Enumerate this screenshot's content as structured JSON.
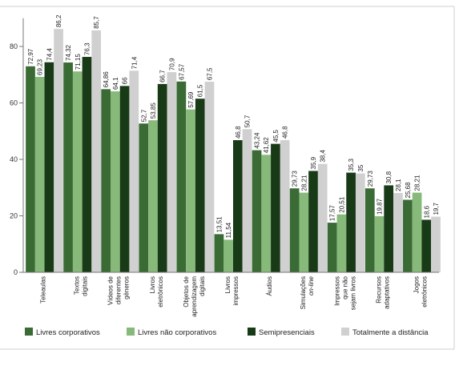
{
  "chart_data": {
    "type": "bar",
    "ylim": [
      0,
      90
    ],
    "yticks": [
      0,
      20,
      40,
      60,
      80
    ],
    "grid": false,
    "legend_position": "bottom",
    "categories": [
      [
        "Teleaulas"
      ],
      [
        "Textos",
        "digitais"
      ],
      [
        "Vídeos de",
        "diferentes",
        "gêneros"
      ],
      [
        "Livros",
        "eletrônicos"
      ],
      [
        "Objetos de",
        "aprendizagem",
        "digitais"
      ],
      [
        "Livros",
        "impressos"
      ],
      [
        "Áudios"
      ],
      [
        "Simulações",
        "on-line"
      ],
      [
        "Impressos",
        "que não",
        "sejam livros"
      ],
      [
        "Recursos",
        "adaptativos"
      ],
      [
        "Jogos",
        "eletrônicos"
      ]
    ],
    "series": [
      {
        "name": "Livres corporativos",
        "color": "#3a6b35",
        "values": [
          72.97,
          74.32,
          64.86,
          52.7,
          67.57,
          13.51,
          43.24,
          29.73,
          17.57,
          29.73,
          25.68
        ],
        "labels": [
          "72,97",
          "74,32",
          "64,86",
          "52,7",
          "67,57",
          "13,51",
          "43,24",
          "29,73",
          "17,57",
          "29,73",
          "25,68"
        ]
      },
      {
        "name": "Livres não corporativos",
        "color": "#87b97a",
        "values": [
          69.23,
          71.15,
          64.1,
          53.85,
          57.69,
          11.54,
          41.62,
          28.21,
          20.51,
          19.87,
          28.21
        ],
        "labels": [
          "69,23",
          "71,15",
          "64,1",
          "53,85",
          "57,69",
          "11,54",
          "41,62",
          "28,21",
          "20,51",
          "19,87",
          "28,21"
        ]
      },
      {
        "name": "Semipresenciais",
        "color": "#183a17",
        "values": [
          74.4,
          76.3,
          66,
          66.7,
          61.5,
          46.8,
          45.5,
          35.9,
          35.3,
          30.8,
          18.6
        ],
        "labels": [
          "74,4",
          "76,3",
          "66",
          "66,7",
          "61,5",
          "46,8",
          "45,5",
          "35,9",
          "35,3",
          "30,8",
          "18,6"
        ]
      },
      {
        "name": "Totalmente a distância",
        "color": "#d0d0d0",
        "values": [
          86.2,
          85.7,
          71.4,
          70.9,
          67.5,
          50.7,
          46.8,
          38.4,
          35,
          28.1,
          19.7
        ],
        "labels": [
          "86,2",
          "85,7",
          "71,4",
          "70,9",
          "67,5",
          "50,7",
          "46,8",
          "38,4",
          "35",
          "28,1",
          "19,7"
        ]
      }
    ]
  }
}
